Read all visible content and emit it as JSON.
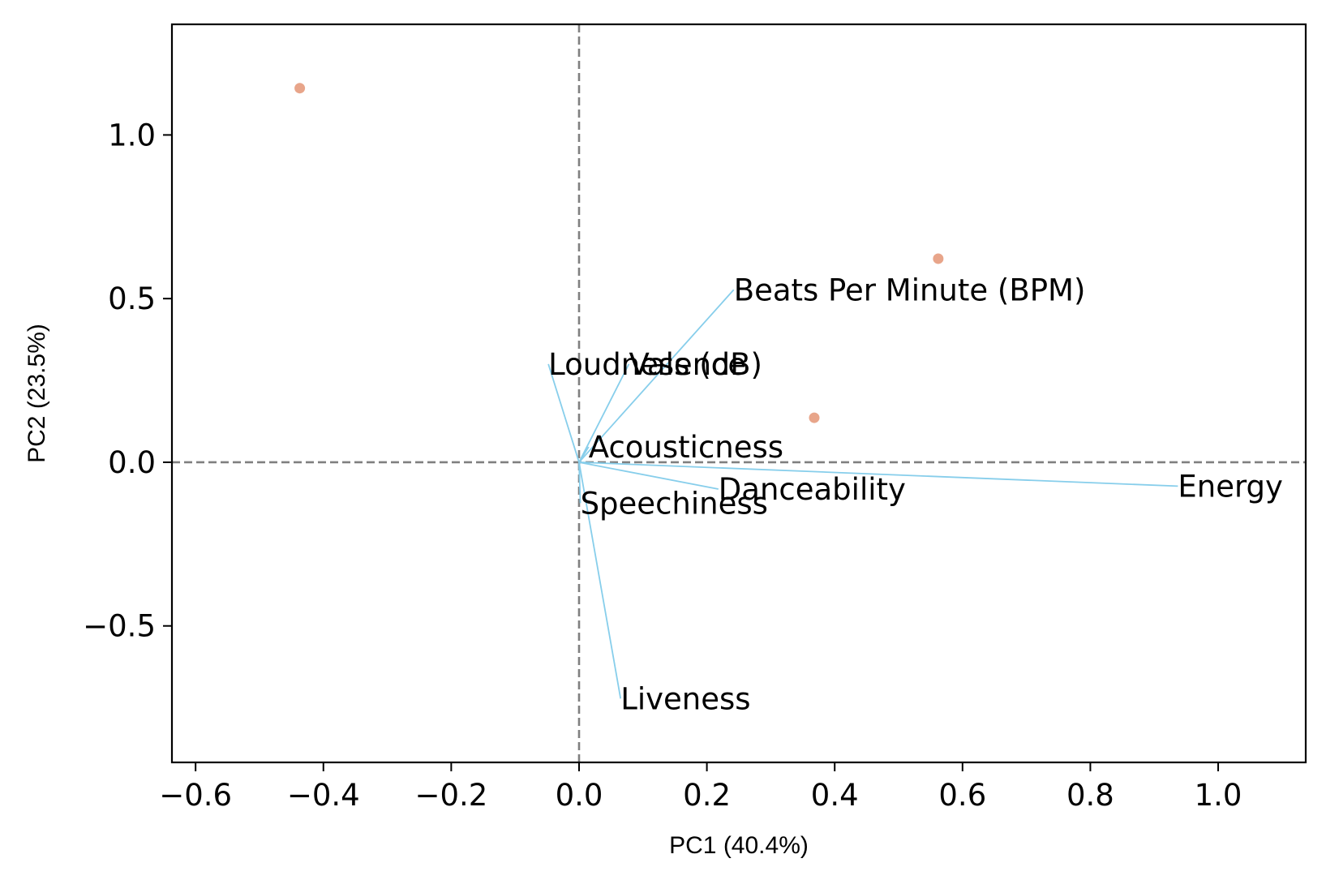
{
  "chart_data": {
    "type": "scatter",
    "subtype": "pca-biplot",
    "title": "",
    "xlabel": "PC1 (40.4%)",
    "ylabel": "PC2 (23.5%)",
    "xlim": [
      -0.637,
      1.137
    ],
    "ylim": [
      -0.917,
      1.338
    ],
    "xticks": [
      -0.6,
      -0.4,
      -0.2,
      0.0,
      0.2,
      0.4,
      0.6,
      0.8,
      1.0
    ],
    "xtick_labels": [
      "−0.6",
      "−0.4",
      "−0.2",
      "0.0",
      "0.2",
      "0.4",
      "0.6",
      "0.8",
      "1.0"
    ],
    "yticks": [
      -0.5,
      0.0,
      0.5,
      1.0
    ],
    "ytick_labels": [
      "−0.5",
      "0.0",
      "0.5",
      "1.0"
    ],
    "grid": false,
    "reference_lines": {
      "x": 0,
      "y": 0,
      "style": "dashed",
      "color": "#808080"
    },
    "points": {
      "color": "#e8a58a",
      "values": [
        {
          "x": -0.437,
          "y": 1.143
        },
        {
          "x": 0.562,
          "y": 0.622
        },
        {
          "x": 0.368,
          "y": 0.136
        }
      ]
    },
    "loadings": {
      "color": "#87ceeb",
      "vectors": [
        {
          "label": "Beats Per Minute (BPM)",
          "x": 0.242,
          "y": 0.527
        },
        {
          "label": "Loudness (dB)",
          "x": -0.048,
          "y": 0.3
        },
        {
          "label": "Valence",
          "x": 0.078,
          "y": 0.3
        },
        {
          "label": "Acousticness",
          "x": 0.015,
          "y": 0.047
        },
        {
          "label": "Danceability",
          "x": 0.218,
          "y": -0.082
        },
        {
          "label": "Energy",
          "x": 0.937,
          "y": -0.073
        },
        {
          "label": "Speechiness",
          "x": 0.002,
          "y": -0.125
        },
        {
          "label": "Liveness",
          "x": 0.065,
          "y": -0.722
        }
      ]
    }
  }
}
